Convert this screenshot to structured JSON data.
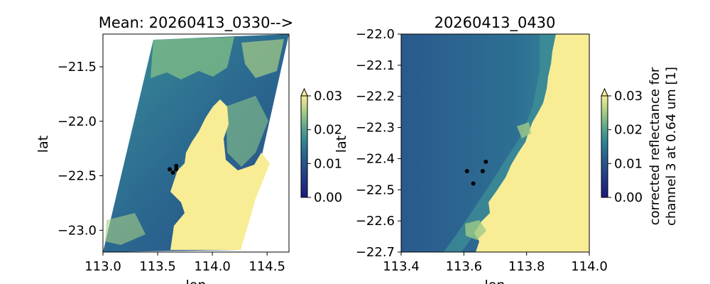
{
  "chart_data": [
    {
      "type": "heatmap",
      "title": "Mean: 20260413_0330-->",
      "xlabel": "lon",
      "ylabel": "lat",
      "xlim": [
        113.0,
        114.7
      ],
      "ylim": [
        -23.2,
        -21.2
      ],
      "x_ticks": [
        113.0,
        113.5,
        114.0,
        114.5
      ],
      "x_tick_labels": [
        "113.0",
        "113.5",
        "114.0",
        "114.5"
      ],
      "y_ticks": [
        -21.5,
        -22.0,
        -22.5,
        -23.0
      ],
      "y_tick_labels": [
        "−21.5",
        "−22.0",
        "−22.5",
        "−23.0"
      ],
      "points": [
        {
          "lon": 113.61,
          "lat": -22.44
        },
        {
          "lon": 113.64,
          "lat": -22.47
        },
        {
          "lon": 113.67,
          "lat": -22.44
        },
        {
          "lon": 113.67,
          "lat": -22.41
        }
      ],
      "colorbar": {
        "ticks": [
          0.0,
          0.01,
          0.02,
          0.03
        ],
        "tick_labels": [
          "0.00",
          "0.01",
          "0.02",
          "0.03"
        ],
        "extend": "max"
      }
    },
    {
      "type": "heatmap",
      "title": "20260413_0430",
      "xlabel": "lon",
      "ylabel": "lat",
      "xlim": [
        113.4,
        114.0
      ],
      "ylim": [
        -22.7,
        -22.0
      ],
      "x_ticks": [
        113.4,
        113.6,
        113.8,
        114.0
      ],
      "x_tick_labels": [
        "113.4",
        "113.6",
        "113.8",
        "114.0"
      ],
      "y_ticks": [
        -22.0,
        -22.1,
        -22.2,
        -22.3,
        -22.4,
        -22.5,
        -22.6,
        -22.7
      ],
      "y_tick_labels": [
        "−22.0",
        "−22.1",
        "−22.2",
        "−22.3",
        "−22.4",
        "−22.5",
        "−22.6",
        "−22.7"
      ],
      "points": [
        {
          "lon": 113.61,
          "lat": -22.44
        },
        {
          "lon": 113.63,
          "lat": -22.48
        },
        {
          "lon": 113.66,
          "lat": -22.44
        },
        {
          "lon": 113.67,
          "lat": -22.41
        }
      ],
      "colorbar": {
        "ticks": [
          0.0,
          0.01,
          0.02,
          0.03
        ],
        "tick_labels": [
          "0.00",
          "0.01",
          "0.02",
          "0.03"
        ],
        "extend": "max",
        "label_line1": "corrected reflectance for",
        "label_line2": "channel 3 at 0.64 um [1]"
      }
    }
  ],
  "colors": {
    "land": "#f8ec95",
    "sea_dark": "#28447f",
    "sea_mid": "#2d6a91",
    "sea_light": "#3d8f98",
    "cloud": "#8fc488",
    "marker": "#000000"
  }
}
